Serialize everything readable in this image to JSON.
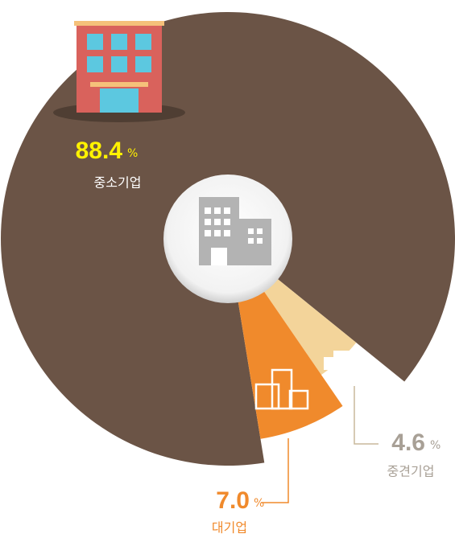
{
  "chart_data": {
    "type": "pie",
    "categories": [
      "중소기업",
      "대기업",
      "중견기업"
    ],
    "values": [
      88.4,
      7.0,
      4.6
    ],
    "unit": "%",
    "colors": [
      "#6b5446",
      "#f08a2c",
      "#f3d49a"
    ]
  }
}
